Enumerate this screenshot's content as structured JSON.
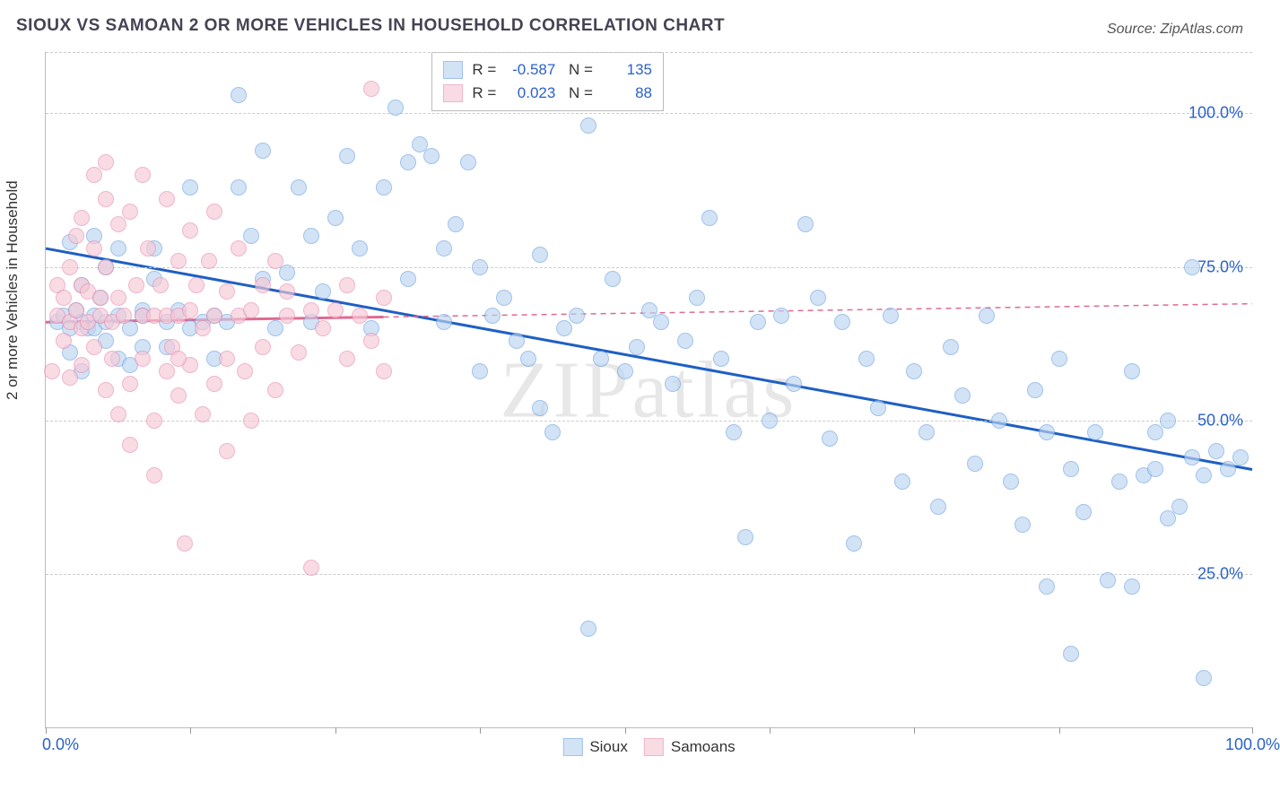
{
  "title": "SIOUX VS SAMOAN 2 OR MORE VEHICLES IN HOUSEHOLD CORRELATION CHART",
  "source_label": "Source: ZipAtlas.com",
  "watermark": "ZIPatlas",
  "y_axis_title": "2 or more Vehicles in Household",
  "chart": {
    "type": "scatter",
    "plot_bg": "#ffffff",
    "grid_color": "#cccccc",
    "axis_color": "#bbbbbb",
    "label_color": "#2a62c9",
    "xlim": [
      0,
      100
    ],
    "ylim": [
      0,
      110
    ],
    "x_ticks": [
      0,
      12,
      24,
      36,
      48,
      60,
      72,
      84,
      100
    ],
    "x_tick_labels": {
      "0": "0.0%",
      "100": "100.0%"
    },
    "y_gridlines": [
      25,
      50,
      75,
      100,
      110
    ],
    "y_tick_labels": {
      "25": "25.0%",
      "50": "50.0%",
      "75": "75.0%",
      "100": "100.0%"
    },
    "marker_radius": 9,
    "marker_stroke_width": 1.5,
    "trend_solid_width": 3,
    "trend_dash_pattern": "6,5"
  },
  "series": [
    {
      "key": "sioux",
      "label": "Sioux",
      "fill": "#bcd5f2",
      "stroke": "#6fa3e0",
      "fill_opacity": 0.65,
      "trend_color": "#1f5fc4",
      "trend": {
        "x1": 0,
        "y1": 78,
        "x2": 100,
        "y2": 42
      },
      "stats": {
        "R": "-0.587",
        "N": "135"
      },
      "points": [
        [
          1,
          66
        ],
        [
          1.5,
          67
        ],
        [
          2,
          65
        ],
        [
          2,
          79
        ],
        [
          2,
          61
        ],
        [
          2.5,
          68
        ],
        [
          3,
          66
        ],
        [
          3,
          72
        ],
        [
          3,
          58
        ],
        [
          3.5,
          65
        ],
        [
          4,
          80
        ],
        [
          4,
          67
        ],
        [
          4,
          65
        ],
        [
          4.5,
          70
        ],
        [
          5,
          66
        ],
        [
          5,
          63
        ],
        [
          5,
          75
        ],
        [
          6,
          67
        ],
        [
          6,
          60
        ],
        [
          6,
          78
        ],
        [
          7,
          65
        ],
        [
          7,
          59
        ],
        [
          8,
          68
        ],
        [
          8,
          62
        ],
        [
          8,
          67
        ],
        [
          9,
          78
        ],
        [
          9,
          73
        ],
        [
          10,
          62
        ],
        [
          10,
          66
        ],
        [
          11,
          68
        ],
        [
          12,
          88
        ],
        [
          12,
          65
        ],
        [
          13,
          66
        ],
        [
          14,
          67
        ],
        [
          14,
          60
        ],
        [
          15,
          66
        ],
        [
          16,
          103
        ],
        [
          16,
          88
        ],
        [
          17,
          80
        ],
        [
          18,
          94
        ],
        [
          18,
          73
        ],
        [
          19,
          65
        ],
        [
          20,
          74
        ],
        [
          21,
          88
        ],
        [
          22,
          66
        ],
        [
          22,
          80
        ],
        [
          23,
          71
        ],
        [
          24,
          83
        ],
        [
          25,
          93
        ],
        [
          26,
          78
        ],
        [
          27,
          65
        ],
        [
          28,
          88
        ],
        [
          29,
          101
        ],
        [
          30,
          92
        ],
        [
          30,
          73
        ],
        [
          31,
          95
        ],
        [
          32,
          93
        ],
        [
          33,
          66
        ],
        [
          33,
          78
        ],
        [
          34,
          82
        ],
        [
          35,
          92
        ],
        [
          36,
          58
        ],
        [
          36,
          75
        ],
        [
          37,
          67
        ],
        [
          38,
          70
        ],
        [
          39,
          63
        ],
        [
          40,
          60
        ],
        [
          41,
          52
        ],
        [
          41,
          77
        ],
        [
          42,
          48
        ],
        [
          43,
          65
        ],
        [
          44,
          67
        ],
        [
          45,
          98
        ],
        [
          45,
          16
        ],
        [
          46,
          60
        ],
        [
          47,
          73
        ],
        [
          48,
          58
        ],
        [
          49,
          62
        ],
        [
          50,
          68
        ],
        [
          51,
          66
        ],
        [
          52,
          56
        ],
        [
          53,
          63
        ],
        [
          54,
          70
        ],
        [
          55,
          83
        ],
        [
          56,
          60
        ],
        [
          57,
          48
        ],
        [
          58,
          31
        ],
        [
          59,
          66
        ],
        [
          60,
          50
        ],
        [
          61,
          67
        ],
        [
          62,
          56
        ],
        [
          63,
          82
        ],
        [
          64,
          70
        ],
        [
          65,
          47
        ],
        [
          66,
          66
        ],
        [
          67,
          30
        ],
        [
          68,
          60
        ],
        [
          69,
          52
        ],
        [
          70,
          67
        ],
        [
          71,
          40
        ],
        [
          72,
          58
        ],
        [
          73,
          48
        ],
        [
          74,
          36
        ],
        [
          75,
          62
        ],
        [
          76,
          54
        ],
        [
          77,
          43
        ],
        [
          78,
          67
        ],
        [
          79,
          50
        ],
        [
          80,
          40
        ],
        [
          81,
          33
        ],
        [
          82,
          55
        ],
        [
          83,
          48
        ],
        [
          83,
          23
        ],
        [
          84,
          60
        ],
        [
          85,
          42
        ],
        [
          85,
          12
        ],
        [
          86,
          35
        ],
        [
          87,
          48
        ],
        [
          88,
          24
        ],
        [
          89,
          40
        ],
        [
          90,
          58
        ],
        [
          90,
          23
        ],
        [
          91,
          41
        ],
        [
          92,
          48
        ],
        [
          92,
          42
        ],
        [
          93,
          50
        ],
        [
          93,
          34
        ],
        [
          94,
          36
        ],
        [
          95,
          75
        ],
        [
          95,
          44
        ],
        [
          96,
          41
        ],
        [
          96,
          8
        ],
        [
          97,
          45
        ],
        [
          98,
          42
        ],
        [
          99,
          44
        ]
      ]
    },
    {
      "key": "samoans",
      "label": "Samoans",
      "fill": "#f7c9d6",
      "stroke": "#e78fb0",
      "fill_opacity": 0.65,
      "trend_color": "#e06a92",
      "trend": {
        "x1": 0,
        "y1": 66,
        "x2": 100,
        "y2": 69
      },
      "trend_solid_until_x": 28,
      "stats": {
        "R": "0.023",
        "N": "88"
      },
      "points": [
        [
          0.5,
          58
        ],
        [
          1,
          67
        ],
        [
          1,
          72
        ],
        [
          1.5,
          63
        ],
        [
          1.5,
          70
        ],
        [
          2,
          66
        ],
        [
          2,
          75
        ],
        [
          2,
          57
        ],
        [
          2.5,
          68
        ],
        [
          2.5,
          80
        ],
        [
          3,
          65
        ],
        [
          3,
          72
        ],
        [
          3,
          83
        ],
        [
          3,
          59
        ],
        [
          3.5,
          66
        ],
        [
          3.5,
          71
        ],
        [
          4,
          78
        ],
        [
          4,
          62
        ],
        [
          4,
          90
        ],
        [
          4.5,
          67
        ],
        [
          4.5,
          70
        ],
        [
          5,
          86
        ],
        [
          5,
          75
        ],
        [
          5,
          55
        ],
        [
          5,
          92
        ],
        [
          5.5,
          66
        ],
        [
          5.5,
          60
        ],
        [
          6,
          82
        ],
        [
          6,
          70
        ],
        [
          6,
          51
        ],
        [
          6.5,
          67
        ],
        [
          7,
          84
        ],
        [
          7,
          56
        ],
        [
          7,
          46
        ],
        [
          7.5,
          72
        ],
        [
          8,
          67
        ],
        [
          8,
          90
        ],
        [
          8,
          60
        ],
        [
          8.5,
          78
        ],
        [
          9,
          41
        ],
        [
          9,
          67
        ],
        [
          9.5,
          72
        ],
        [
          10,
          86
        ],
        [
          10,
          58
        ],
        [
          10,
          67
        ],
        [
          10.5,
          62
        ],
        [
          11,
          76
        ],
        [
          11,
          54
        ],
        [
          11,
          67
        ],
        [
          11.5,
          30
        ],
        [
          12,
          68
        ],
        [
          12,
          81
        ],
        [
          12,
          59
        ],
        [
          12.5,
          72
        ],
        [
          13,
          65
        ],
        [
          13,
          51
        ],
        [
          13.5,
          76
        ],
        [
          14,
          67
        ],
        [
          14,
          84
        ],
        [
          14,
          56
        ],
        [
          15,
          71
        ],
        [
          15,
          60
        ],
        [
          15,
          45
        ],
        [
          16,
          67
        ],
        [
          16,
          78
        ],
        [
          16.5,
          58
        ],
        [
          17,
          68
        ],
        [
          17,
          50
        ],
        [
          18,
          72
        ],
        [
          18,
          62
        ],
        [
          19,
          76
        ],
        [
          19,
          55
        ],
        [
          20,
          67
        ],
        [
          20,
          71
        ],
        [
          21,
          61
        ],
        [
          22,
          68
        ],
        [
          22,
          26
        ],
        [
          23,
          65
        ],
        [
          24,
          68
        ],
        [
          25,
          72
        ],
        [
          25,
          60
        ],
        [
          26,
          67
        ],
        [
          27,
          104
        ],
        [
          27,
          63
        ],
        [
          28,
          70
        ],
        [
          28,
          58
        ],
        [
          11,
          60
        ],
        [
          9,
          50
        ]
      ]
    }
  ],
  "legend": {
    "stats_box": {
      "left_pct": 32,
      "top_pct": 0
    },
    "bottom_items": [
      "sioux",
      "samoans"
    ]
  }
}
